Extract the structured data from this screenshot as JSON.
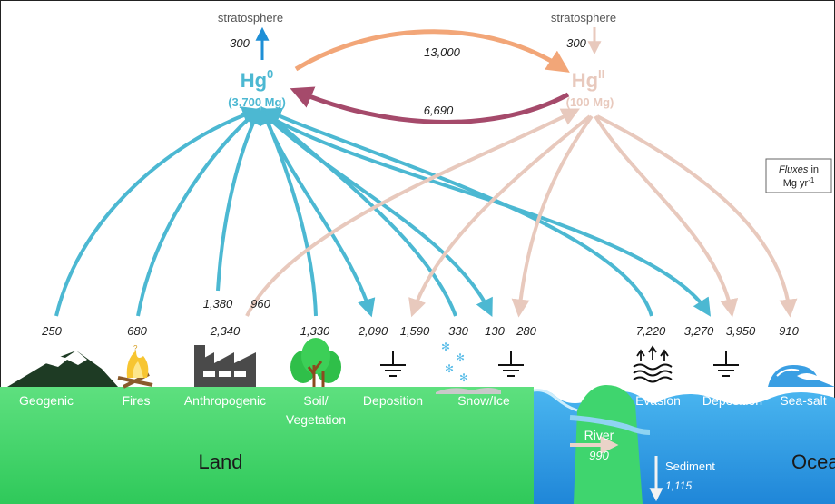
{
  "colors": {
    "hg0": "#4cb8d2",
    "hgII": "#e8c9bd",
    "hgII_to_hg0": "#a54a6b",
    "hg0_to_hgII": "#f2a678",
    "strat_up": "#1e8fd6",
    "land": "#44d76c",
    "ocean": "#2f9ee8"
  },
  "stratosphere": {
    "left_label": "stratosphere",
    "left_flux": "300",
    "right_label": "stratosphere",
    "right_flux": "300"
  },
  "species": {
    "hg0": {
      "symbol": "Hg",
      "superscript": "0",
      "mass": "(3,700 Mg)"
    },
    "hgII": {
      "symbol": "Hg",
      "superscript": "II",
      "mass": "(100 Mg)"
    }
  },
  "exchange": {
    "oxidation_flux": "13,000",
    "reduction_flux": "6,690"
  },
  "legend": {
    "fluxes_word": "Fluxes",
    "in_word": " in",
    "units": "Mg yr",
    "units_exp": "-1"
  },
  "fluxes": {
    "geogenic": "250",
    "fires": "680",
    "anthropogenic_hg0": "2,340",
    "anthropogenic_hg0_upper": "1,380",
    "anthropogenic_hgII": "960",
    "soil_vegetation": "1,330",
    "land_deposition_hg0": "2,090",
    "land_deposition_hgII": "1,590",
    "snow_ice_emission": "330",
    "snow_ice_dep_hg0": "130",
    "snow_ice_dep_hgII": "280",
    "ocean_evasion": "7,220",
    "ocean_dep_hg0": "3,270",
    "ocean_dep_hgII": "3,950",
    "sea_salt": "910",
    "river": "990",
    "sediment": "1,115"
  },
  "categories": {
    "geogenic": "Geogenic",
    "fires": "Fires",
    "anthropogenic": "Anthropogenic",
    "soil_line1": "Soil/",
    "soil_line2": "Vegetation",
    "land_deposition": "Deposition",
    "snow_ice": "Snow/Ice",
    "evasion": "Evasion",
    "ocean_deposition": "Deposition",
    "sea_salt": "Sea-salt"
  },
  "regions": {
    "land": "Land",
    "ocean": "Ocean",
    "river": "River",
    "sediment": "Sediment"
  }
}
